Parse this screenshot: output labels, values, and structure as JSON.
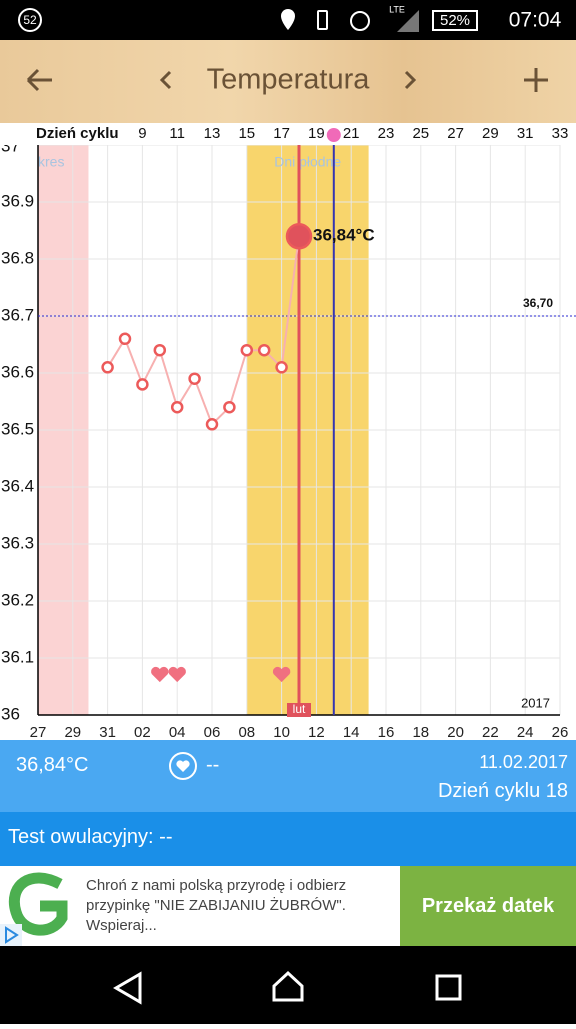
{
  "status_bar": {
    "notification": "52",
    "network": "LTE",
    "battery": "52%",
    "time": "07:04"
  },
  "header": {
    "title": "Temperatura"
  },
  "chart_data": {
    "type": "line",
    "x_label": "Dzień cyklu",
    "xlim": [
      3,
      33
    ],
    "xticks": [
      9,
      11,
      13,
      15,
      17,
      19,
      21,
      23,
      25,
      27,
      29,
      31,
      33
    ],
    "date_ticks": [
      {
        "value": 3,
        "label": "27"
      },
      {
        "value": 5,
        "label": "29"
      },
      {
        "value": 7,
        "label": "31"
      },
      {
        "value": 9,
        "label": "02"
      },
      {
        "value": 11,
        "label": "04"
      },
      {
        "value": 13,
        "label": "06"
      },
      {
        "value": 15,
        "label": "08"
      },
      {
        "value": 17,
        "label": "10"
      },
      {
        "value": 19,
        "label": "12"
      },
      {
        "value": 21,
        "label": "14"
      },
      {
        "value": 23,
        "label": "16"
      },
      {
        "value": 25,
        "label": "18"
      },
      {
        "value": 27,
        "label": "20"
      },
      {
        "value": 29,
        "label": "22"
      },
      {
        "value": 31,
        "label": "24"
      },
      {
        "value": 33,
        "label": "26"
      }
    ],
    "ylim": [
      36,
      37
    ],
    "yticks": [
      36,
      36.1,
      36.2,
      36.3,
      36.4,
      36.5,
      36.6,
      36.7,
      36.8,
      36.9,
      37
    ],
    "grid": true,
    "series": [
      {
        "color": "#f08a8a",
        "x": [
          7,
          8,
          9,
          10,
          11,
          12,
          13,
          14,
          15,
          16,
          17,
          18
        ],
        "values": [
          36.61,
          36.66,
          36.58,
          36.64,
          36.54,
          36.59,
          36.51,
          36.54,
          36.64,
          36.64,
          36.61,
          36.84
        ],
        "value_labels": [
          null,
          null,
          null,
          null,
          null,
          null,
          null,
          null,
          null,
          null,
          null,
          "36,84°C"
        ]
      }
    ],
    "threshold": {
      "value": 36.7,
      "label": "36,70",
      "color": "#2a2ad0"
    },
    "bands": [
      {
        "label": "kres",
        "from": 3,
        "to": 5.9,
        "color": "#fbd3d3"
      },
      {
        "label": "Dni płodne",
        "from": 15,
        "to": 22,
        "color": "#f8d56c"
      }
    ],
    "markers": [
      {
        "x": 18,
        "color": "#e0525c",
        "label": "lut"
      },
      {
        "x": 20,
        "color": "#3535b0"
      }
    ],
    "hearts": [
      10,
      11,
      17
    ],
    "year": "2017"
  },
  "info": {
    "temperature": "36,84°C",
    "heart": "--",
    "date": "11.02.2017",
    "cycle_day": "Dzień cyklu 18",
    "ovulation_test": "Test owulacyjny: --"
  },
  "ad": {
    "text": "Chroń z nami polską przyrodę i odbierz przypinkę \"NIE ZABIJANIU ŻUBRÓW\". Wspieraj...",
    "button": "Przekaż datek"
  }
}
